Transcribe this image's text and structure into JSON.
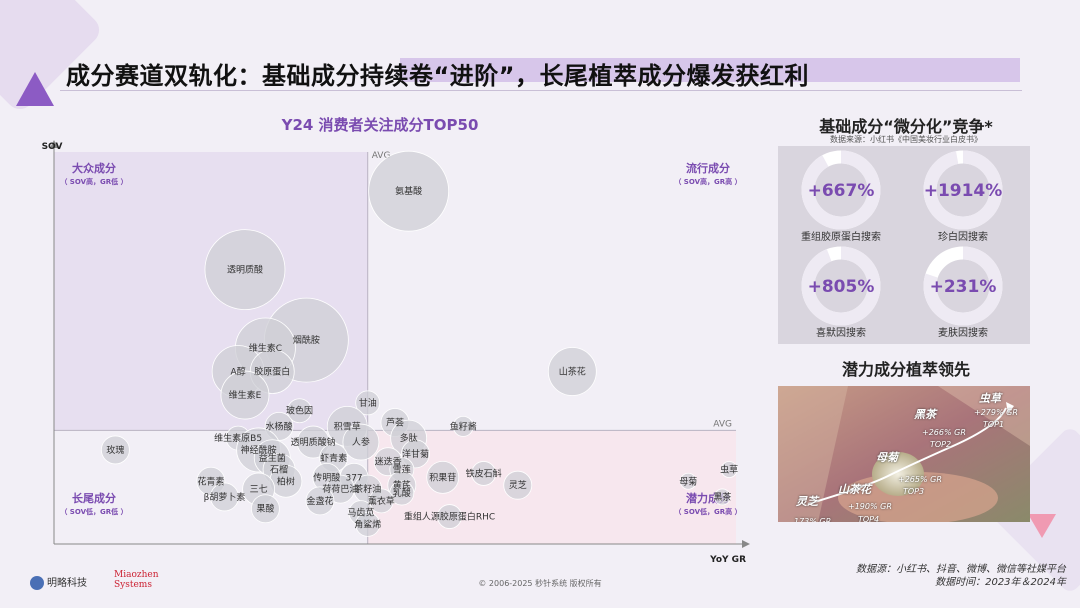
{
  "title": "成分赛道双轨化：基础成分持续卷“进阶”，长尾植萃成分爆发获红利",
  "chart_data": {
    "type": "bubble",
    "title": "Y24 消费者关注成分TOP50",
    "ylabel": "SOV",
    "xlabel": "YoY GR",
    "avg_label": "AVG",
    "quadrants": {
      "top_left": {
        "title": "大众成分",
        "sub": "（ SOV高，GR低 ）"
      },
      "top_right": {
        "title": "流行成分",
        "sub": "（ SOV高，GR高 ）"
      },
      "bottom_left": {
        "title": "长尾成分",
        "sub": "（ SOV低，GR低 ）"
      },
      "bottom_right": {
        "title": "潜力成分",
        "sub": "（ SOV低，GR高 ）"
      }
    },
    "x_range": [
      0,
      100
    ],
    "y_range": [
      0,
      100
    ],
    "avg_x": 46,
    "avg_y": 29,
    "points": [
      {
        "name": "氨基酸",
        "x": 52,
        "y": 90,
        "size": 40
      },
      {
        "name": "透明质酸",
        "x": 28,
        "y": 70,
        "size": 40
      },
      {
        "name": "烟酰胺",
        "x": 37,
        "y": 52,
        "size": 42
      },
      {
        "name": "维生素C",
        "x": 31,
        "y": 50,
        "size": 30
      },
      {
        "name": "A醇",
        "x": 27,
        "y": 44,
        "size": 26
      },
      {
        "name": "胶原蛋白",
        "x": 32,
        "y": 44,
        "size": 22
      },
      {
        "name": "维生素E",
        "x": 28,
        "y": 38,
        "size": 24
      },
      {
        "name": "山茶花",
        "x": 76,
        "y": 44,
        "size": 24
      },
      {
        "name": "玻色因",
        "x": 36,
        "y": 34,
        "size": 12
      },
      {
        "name": "甘油",
        "x": 46,
        "y": 36,
        "size": 12
      },
      {
        "name": "芦荟",
        "x": 50,
        "y": 31,
        "size": 14
      },
      {
        "name": "水杨酸",
        "x": 33,
        "y": 30,
        "size": 14
      },
      {
        "name": "积雪草",
        "x": 43,
        "y": 30,
        "size": 20
      },
      {
        "name": "鱼籽酱",
        "x": 60,
        "y": 30,
        "size": 10
      },
      {
        "name": "多肽",
        "x": 52,
        "y": 27,
        "size": 18
      },
      {
        "name": "维生素原B5",
        "x": 27,
        "y": 27,
        "size": 12
      },
      {
        "name": "透明质酸钠",
        "x": 38,
        "y": 26,
        "size": 16
      },
      {
        "name": "人参",
        "x": 45,
        "y": 26,
        "size": 18
      },
      {
        "name": "神经酰胺",
        "x": 30,
        "y": 24,
        "size": 22
      },
      {
        "name": "洋甘菊",
        "x": 53,
        "y": 23,
        "size": 14
      },
      {
        "name": "玫瑰",
        "x": 9,
        "y": 24,
        "size": 14
      },
      {
        "name": "益生菌",
        "x": 32,
        "y": 22,
        "size": 18
      },
      {
        "name": "虾青素",
        "x": 41,
        "y": 22,
        "size": 14
      },
      {
        "name": "迷迭香",
        "x": 49,
        "y": 21,
        "size": 14
      },
      {
        "name": "石榴",
        "x": 33,
        "y": 19,
        "size": 16
      },
      {
        "name": "雪莲",
        "x": 51,
        "y": 19,
        "size": 12
      },
      {
        "name": "铁皮石斛",
        "x": 63,
        "y": 18,
        "size": 12
      },
      {
        "name": "积果苷",
        "x": 57,
        "y": 17,
        "size": 16
      },
      {
        "name": "花青素",
        "x": 23,
        "y": 16,
        "size": 14
      },
      {
        "name": "柏树",
        "x": 34,
        "y": 16,
        "size": 16
      },
      {
        "name": "传明酸",
        "x": 40,
        "y": 17,
        "size": 14
      },
      {
        "name": "377",
        "x": 44,
        "y": 17,
        "size": 14
      },
      {
        "name": "黄芪",
        "x": 51,
        "y": 15,
        "size": 14
      },
      {
        "name": "三七",
        "x": 30,
        "y": 14,
        "size": 16
      },
      {
        "name": "荷荷巴油",
        "x": 42,
        "y": 14,
        "size": 14
      },
      {
        "name": "茶籽油",
        "x": 46,
        "y": 14,
        "size": 14
      },
      {
        "name": "乳酸",
        "x": 51,
        "y": 13,
        "size": 12
      },
      {
        "name": "灵芝",
        "x": 68,
        "y": 15,
        "size": 14
      },
      {
        "name": "β胡萝卜素",
        "x": 25,
        "y": 12,
        "size": 14
      },
      {
        "name": "金盏花",
        "x": 39,
        "y": 11,
        "size": 14
      },
      {
        "name": "薰衣草",
        "x": 48,
        "y": 11,
        "size": 12
      },
      {
        "name": "果酸",
        "x": 31,
        "y": 9,
        "size": 14
      },
      {
        "name": "马齿苋",
        "x": 45,
        "y": 8,
        "size": 12
      },
      {
        "name": "重组人源胶原蛋白RHC",
        "x": 58,
        "y": 7,
        "size": 12
      },
      {
        "name": "角鲨烯",
        "x": 46,
        "y": 5,
        "size": 12
      },
      {
        "name": "母菊",
        "x": 93,
        "y": 16,
        "size": 8
      },
      {
        "name": "虫草",
        "x": 99,
        "y": 19,
        "size": 8
      },
      {
        "name": "黑茶",
        "x": 98,
        "y": 12,
        "size": 8
      }
    ]
  },
  "donuts": {
    "title": "基础成分“微分化”竞争*",
    "source": "数据来源：小红书《中国美妆行业白皮书》",
    "items": [
      {
        "value": "+667%",
        "label": "重组胶原蛋白搜索",
        "fill": 0.92
      },
      {
        "value": "+1914%",
        "label": "珍白因搜索",
        "fill": 0.97
      },
      {
        "value": "+805%",
        "label": "喜默因搜索",
        "fill": 0.94
      },
      {
        "value": "+231%",
        "label": "麦肤因搜索",
        "fill": 0.8
      }
    ]
  },
  "plant": {
    "title": "潜力成分植萃领先",
    "items": [
      {
        "name": "虫草",
        "gr": "+279% GR",
        "top": "TOP1"
      },
      {
        "name": "黑茶",
        "gr": "+266% GR",
        "top": "TOP2"
      },
      {
        "name": "母菊",
        "gr": "+265% GR",
        "top": "TOP3"
      },
      {
        "name": "山茶花",
        "gr": "+190% GR",
        "top": "TOP4"
      },
      {
        "name": "灵芝",
        "gr": "173% GR",
        "top": "TOP5"
      }
    ]
  },
  "footer": {
    "source_line1": "数据源：小红书、抖音、微博、微信等社媒平台",
    "source_line2": "数据时间：2023年＆2024年",
    "copyright": "© 2006-2025 秒针系统 版权所有",
    "logo_text": "明略科技",
    "logo2_line1": "Miaozhen",
    "logo2_line2": "Systems"
  },
  "colors": {
    "accent": "#7a4bb0",
    "quadrant_top_left": "#e7dff0",
    "quadrant_bottom_right": "#f7e7ee",
    "bubble": "#cfcfd6",
    "donut_track": "#ffffff",
    "donut_fill": "#7a4bb0"
  }
}
